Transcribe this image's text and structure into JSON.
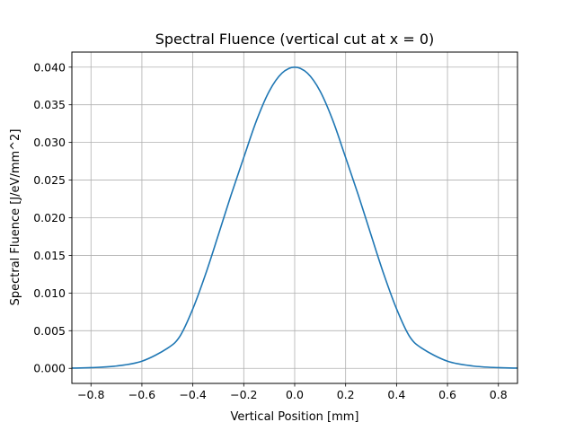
{
  "chart_data": {
    "type": "line",
    "title": "Spectral Fluence (vertical cut at x = 0)",
    "xlabel": "Vertical Position [mm]",
    "ylabel": "Spectral Fluence [J/eV/mm^2]",
    "xlim": [
      -0.875,
      0.875
    ],
    "ylim": [
      -0.002,
      0.042
    ],
    "xticks": [
      -0.8,
      -0.6,
      -0.4,
      -0.2,
      0.0,
      0.2,
      0.4,
      0.6,
      0.8
    ],
    "xtick_labels": [
      "−0.8",
      "−0.6",
      "−0.4",
      "−0.2",
      "0.0",
      "0.2",
      "0.4",
      "0.6",
      "0.8"
    ],
    "yticks": [
      0.0,
      0.005,
      0.01,
      0.015,
      0.02,
      0.025,
      0.03,
      0.035,
      0.04
    ],
    "ytick_labels": [
      "0.000",
      "0.005",
      "0.010",
      "0.015",
      "0.020",
      "0.025",
      "0.030",
      "0.035",
      "0.040"
    ],
    "grid": true,
    "series": [
      {
        "color": "#1f77b4",
        "x": [
          -0.875,
          -0.8,
          -0.7,
          -0.6,
          -0.5,
          -0.45,
          -0.4,
          -0.35,
          -0.3,
          -0.25,
          -0.2,
          -0.15,
          -0.1,
          -0.05,
          0.0,
          0.05,
          0.1,
          0.15,
          0.2,
          0.25,
          0.3,
          0.35,
          0.4,
          0.45,
          0.5,
          0.6,
          0.7,
          0.8,
          0.875
        ],
        "y": [
          3e-05,
          9e-05,
          0.00031,
          0.00095,
          0.00266,
          0.0043,
          0.0079,
          0.0125,
          0.0177,
          0.023,
          0.028,
          0.0329,
          0.0368,
          0.0392,
          0.04,
          0.0392,
          0.0368,
          0.0329,
          0.028,
          0.023,
          0.0177,
          0.0125,
          0.0079,
          0.0043,
          0.00266,
          0.00095,
          0.00031,
          9e-05,
          3e-05
        ]
      }
    ]
  }
}
